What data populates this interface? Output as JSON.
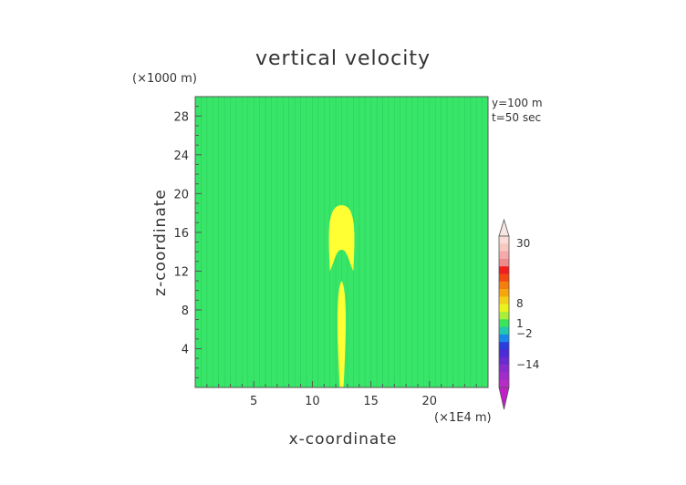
{
  "chart_data": {
    "type": "heatmap",
    "title": "vertical velocity",
    "xlabel": "x-coordinate",
    "ylabel": "z-coordinate",
    "x_unit": "(×1E4 m)",
    "y_unit": "(×1000 m)",
    "xlim": [
      0,
      25
    ],
    "ylim": [
      0,
      30
    ],
    "x_ticks": [
      5,
      10,
      15,
      20
    ],
    "y_ticks": [
      4,
      8,
      12,
      16,
      20,
      24,
      28
    ],
    "info_lines": [
      "y=100 m",
      "t=50 sec"
    ],
    "background_level": 0,
    "features": [
      {
        "kind": "plume-cap",
        "x_center": 12.5,
        "x_range": [
          11.5,
          13.5
        ],
        "z_range": [
          12,
          18.8
        ],
        "level": 1
      },
      {
        "kind": "plume-column",
        "x_center": 12.5,
        "x_range": [
          12.1,
          12.9
        ],
        "z_range": [
          0,
          11
        ],
        "level": 1
      }
    ],
    "colorbar": {
      "tick_labels": [
        "30",
        "8",
        "1",
        "−2",
        "−14"
      ],
      "tick_values": [
        30,
        8,
        1,
        -2,
        -14
      ],
      "bands": [
        {
          "color": "#fadcd6"
        },
        {
          "color": "#f5c8c0"
        },
        {
          "color": "#f4aaaa"
        },
        {
          "color": "#f08a8a"
        },
        {
          "color": "#ef1f1f"
        },
        {
          "color": "#f24a12"
        },
        {
          "color": "#f47f0e"
        },
        {
          "color": "#f6a60c"
        },
        {
          "color": "#f3d11a"
        },
        {
          "color": "#eaf21e"
        },
        {
          "color": "#a8ee3a"
        },
        {
          "color": "#3ce35c"
        },
        {
          "color": "#22c7b0"
        },
        {
          "color": "#1a88e8"
        },
        {
          "color": "#2c3ddc"
        },
        {
          "color": "#4a2bd4"
        },
        {
          "color": "#6a2cd0"
        },
        {
          "color": "#8a2ccc"
        },
        {
          "color": "#a22cc8"
        },
        {
          "color": "#b62cc4"
        }
      ],
      "top_color": "#f7e6e2",
      "bottom_color": "#c21ec8"
    },
    "colors": {
      "field": "#37e668",
      "plume": "#ffff33"
    }
  }
}
